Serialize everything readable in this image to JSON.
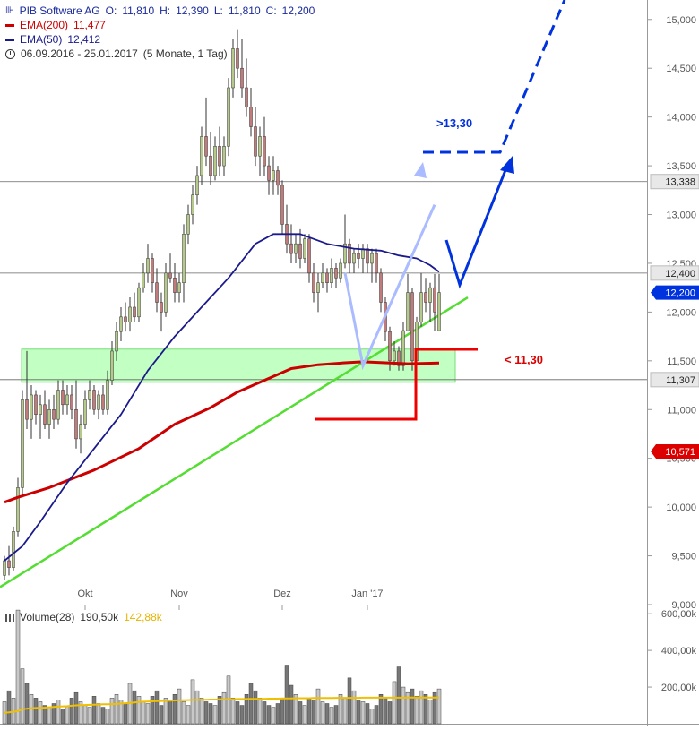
{
  "header": {
    "instrument": "PIB Software AG",
    "open_label": "O:",
    "open": "11,810",
    "high_label": "H:",
    "high": "12,390",
    "low_label": "L:",
    "low": "11,810",
    "close_label": "C:",
    "close": "12,200",
    "ema200_label": "EMA(200)",
    "ema200_value": "11,477",
    "ema50_label": "EMA(50)",
    "ema50_value": "12,412",
    "period": "06.09.2016 - 25.01.2017",
    "period_detail": "(5 Monate, 1 Tag)"
  },
  "volume_legend": {
    "label": "Volume(28)",
    "value": "190,50k",
    "average": "142,88k"
  },
  "colors": {
    "up": "#b5c98a",
    "down": "#c27b7b",
    "ema200": "#cc0000",
    "ema50": "#1a1a8c",
    "trend": "#55dd33",
    "zone": "#99ff99",
    "arrow": "#0033dd",
    "arrow_light": "#aabbff"
  },
  "chart_data": {
    "type": "candlestick",
    "y_ticks": [
      "15,000",
      "14,500",
      "14,000",
      "13,500",
      "13,000",
      "12,500",
      "12,000",
      "11,500",
      "11,000",
      "10,500",
      "10,000",
      "9,500",
      "9,000"
    ],
    "y_tick_values": [
      15.0,
      14.5,
      14.0,
      13.5,
      13.0,
      12.5,
      12.0,
      11.5,
      11.0,
      10.5,
      10.0,
      9.5,
      9.0
    ],
    "ylim": [
      9.0,
      15.2
    ],
    "x_ticks": [
      "Okt",
      "Nov",
      "Dez",
      "Jan '17"
    ],
    "x_tick_positions": [
      18,
      39,
      62,
      81
    ],
    "num_bars": 98,
    "horizontal_lines": [
      {
        "value": 13.338,
        "label": "13,338"
      },
      {
        "value": 12.4,
        "label": "12,400"
      },
      {
        "value": 11.307,
        "label": "11,307"
      }
    ],
    "price_badges": [
      {
        "value": 12.2,
        "label": "12,200",
        "color": "#0033dd"
      },
      {
        "value": 10.571,
        "label": "10,571",
        "color": "#dd0000"
      }
    ],
    "annotations": [
      {
        "text": ">13,30",
        "color": "#0033dd"
      },
      {
        "text": "< 11,30",
        "color": "#dd0000"
      }
    ],
    "support_zone": [
      11.28,
      11.62
    ],
    "candles": [
      [
        9.3,
        9.5,
        9.25,
        9.45
      ],
      [
        9.45,
        9.6,
        9.3,
        9.38
      ],
      [
        9.38,
        9.8,
        9.35,
        9.75
      ],
      [
        9.75,
        10.3,
        9.7,
        10.2
      ],
      [
        10.2,
        11.2,
        10.1,
        11.1
      ],
      [
        11.1,
        11.6,
        10.8,
        10.9
      ],
      [
        10.9,
        11.25,
        10.7,
        11.15
      ],
      [
        11.15,
        11.2,
        10.85,
        10.95
      ],
      [
        10.95,
        11.15,
        10.7,
        11.05
      ],
      [
        11.05,
        11.2,
        10.8,
        10.85
      ],
      [
        10.85,
        11.1,
        10.7,
        11.0
      ],
      [
        11.0,
        11.15,
        10.8,
        10.9
      ],
      [
        10.9,
        11.3,
        10.85,
        11.2
      ],
      [
        11.2,
        11.3,
        10.95,
        11.05
      ],
      [
        11.05,
        11.25,
        10.95,
        11.15
      ],
      [
        11.15,
        11.25,
        10.9,
        11.0
      ],
      [
        11.0,
        11.3,
        10.6,
        10.7
      ],
      [
        10.7,
        10.95,
        10.55,
        10.85
      ],
      [
        10.85,
        11.2,
        10.8,
        11.1
      ],
      [
        11.1,
        11.3,
        11.0,
        11.2
      ],
      [
        11.2,
        11.25,
        10.95,
        11.0
      ],
      [
        11.0,
        11.2,
        10.9,
        11.15
      ],
      [
        11.15,
        11.25,
        10.95,
        11.0
      ],
      [
        11.0,
        11.4,
        10.95,
        11.3
      ],
      [
        11.3,
        11.7,
        11.25,
        11.6
      ],
      [
        11.6,
        11.9,
        11.5,
        11.8
      ],
      [
        11.8,
        12.05,
        11.7,
        11.95
      ],
      [
        11.95,
        12.1,
        11.8,
        11.9
      ],
      [
        11.9,
        12.15,
        11.8,
        12.05
      ],
      [
        12.05,
        12.2,
        11.9,
        11.95
      ],
      [
        11.95,
        12.3,
        11.9,
        12.25
      ],
      [
        12.25,
        12.5,
        12.2,
        12.4
      ],
      [
        12.4,
        12.7,
        12.3,
        12.55
      ],
      [
        12.55,
        12.6,
        12.2,
        12.3
      ],
      [
        12.3,
        12.45,
        12.0,
        12.1
      ],
      [
        12.1,
        12.2,
        11.8,
        12.0
      ],
      [
        12.0,
        12.5,
        11.95,
        12.4
      ],
      [
        12.4,
        12.6,
        12.3,
        12.35
      ],
      [
        12.35,
        12.5,
        12.1,
        12.2
      ],
      [
        12.2,
        12.4,
        12.1,
        12.3
      ],
      [
        12.3,
        12.9,
        12.1,
        12.8
      ],
      [
        12.8,
        13.1,
        12.7,
        13.0
      ],
      [
        13.0,
        13.3,
        12.9,
        13.2
      ],
      [
        13.2,
        13.5,
        13.1,
        13.4
      ],
      [
        13.4,
        13.9,
        13.3,
        13.8
      ],
      [
        13.8,
        14.2,
        13.5,
        13.6
      ],
      [
        13.6,
        13.85,
        13.3,
        13.4
      ],
      [
        13.4,
        13.8,
        13.35,
        13.7
      ],
      [
        13.7,
        13.9,
        13.4,
        13.5
      ],
      [
        13.5,
        13.8,
        13.4,
        13.7
      ],
      [
        13.7,
        14.4,
        13.6,
        14.3
      ],
      [
        14.3,
        14.8,
        14.2,
        14.7
      ],
      [
        14.7,
        14.9,
        14.4,
        14.5
      ],
      [
        14.5,
        14.8,
        14.2,
        14.3
      ],
      [
        14.3,
        14.6,
        14.0,
        14.1
      ],
      [
        14.1,
        14.3,
        13.8,
        13.9
      ],
      [
        13.9,
        14.1,
        13.5,
        13.6
      ],
      [
        13.6,
        13.9,
        13.4,
        13.8
      ],
      [
        13.8,
        14.0,
        13.4,
        13.5
      ],
      [
        13.5,
        13.6,
        13.2,
        13.35
      ],
      [
        13.35,
        13.6,
        13.2,
        13.45
      ],
      [
        13.45,
        13.5,
        13.2,
        13.3
      ],
      [
        13.3,
        13.35,
        12.8,
        12.9
      ],
      [
        12.9,
        13.1,
        12.6,
        12.7
      ],
      [
        12.7,
        12.9,
        12.5,
        12.6
      ],
      [
        12.6,
        12.8,
        12.5,
        12.7
      ],
      [
        12.7,
        12.85,
        12.45,
        12.55
      ],
      [
        12.55,
        12.8,
        12.5,
        12.75
      ],
      [
        12.75,
        12.8,
        12.3,
        12.4
      ],
      [
        12.4,
        12.5,
        12.1,
        12.2
      ],
      [
        12.2,
        12.4,
        12.0,
        12.3
      ],
      [
        12.3,
        12.5,
        12.25,
        12.4
      ],
      [
        12.4,
        12.45,
        12.2,
        12.3
      ],
      [
        12.3,
        12.55,
        12.25,
        12.45
      ],
      [
        12.45,
        12.5,
        12.25,
        12.35
      ],
      [
        12.35,
        12.55,
        12.3,
        12.5
      ],
      [
        12.5,
        13.0,
        12.45,
        12.7
      ],
      [
        12.7,
        12.75,
        12.4,
        12.5
      ],
      [
        12.5,
        12.65,
        12.4,
        12.6
      ],
      [
        12.6,
        12.7,
        12.45,
        12.55
      ],
      [
        12.55,
        12.7,
        12.4,
        12.65
      ],
      [
        12.65,
        12.7,
        12.4,
        12.5
      ],
      [
        12.5,
        12.65,
        12.3,
        12.6
      ],
      [
        12.6,
        12.65,
        12.3,
        12.4
      ],
      [
        12.4,
        12.45,
        12.0,
        12.1
      ],
      [
        12.1,
        12.15,
        11.7,
        11.8
      ],
      [
        11.8,
        11.85,
        11.4,
        11.5
      ],
      [
        11.5,
        11.7,
        11.45,
        11.6
      ],
      [
        11.6,
        11.65,
        11.4,
        11.45
      ],
      [
        11.45,
        11.9,
        11.4,
        11.81
      ],
      [
        11.81,
        12.39,
        11.81,
        12.2
      ],
      [
        12.2,
        12.25,
        11.4,
        11.5
      ],
      [
        11.5,
        11.95,
        11.45,
        11.9
      ],
      [
        11.9,
        12.4,
        11.85,
        12.2
      ],
      [
        12.2,
        12.35,
        12.0,
        12.1
      ],
      [
        12.1,
        12.3,
        11.9,
        12.25
      ],
      [
        12.25,
        12.39,
        11.81,
        12.0
      ],
      [
        11.81,
        12.39,
        11.81,
        12.2
      ]
    ],
    "ema200": [
      [
        0,
        10.05
      ],
      [
        3,
        10.1
      ],
      [
        10,
        10.2
      ],
      [
        20,
        10.38
      ],
      [
        30,
        10.6
      ],
      [
        38,
        10.85
      ],
      [
        46,
        11.02
      ],
      [
        52,
        11.18
      ],
      [
        58,
        11.3
      ],
      [
        64,
        11.42
      ],
      [
        70,
        11.46
      ],
      [
        76,
        11.48
      ],
      [
        80,
        11.49
      ],
      [
        85,
        11.48
      ],
      [
        90,
        11.47
      ],
      [
        97,
        11.477
      ]
    ],
    "ema50": [
      [
        0,
        9.45
      ],
      [
        4,
        9.6
      ],
      [
        8,
        9.85
      ],
      [
        14,
        10.25
      ],
      [
        20,
        10.6
      ],
      [
        26,
        10.95
      ],
      [
        32,
        11.4
      ],
      [
        38,
        11.75
      ],
      [
        44,
        12.05
      ],
      [
        50,
        12.35
      ],
      [
        56,
        12.7
      ],
      [
        60,
        12.8
      ],
      [
        66,
        12.8
      ],
      [
        72,
        12.7
      ],
      [
        78,
        12.65
      ],
      [
        84,
        12.63
      ],
      [
        88,
        12.58
      ],
      [
        92,
        12.55
      ],
      [
        95,
        12.48
      ],
      [
        97,
        12.412
      ]
    ],
    "volume": {
      "y_ticks": [
        "600,00k",
        "400,00k",
        "200,00k"
      ],
      "y_tick_values": [
        600,
        400,
        200
      ],
      "ylim": [
        0,
        640
      ],
      "bars": [
        120,
        180,
        140,
        620,
        300,
        220,
        160,
        140,
        120,
        100,
        90,
        110,
        130,
        80,
        95,
        140,
        170,
        120,
        100,
        90,
        150,
        110,
        90,
        80,
        140,
        160,
        130,
        110,
        220,
        180,
        150,
        120,
        110,
        150,
        180,
        100,
        140,
        130,
        160,
        190,
        120,
        100,
        240,
        180,
        140,
        120,
        110,
        100,
        150,
        170,
        260,
        140,
        120,
        100,
        160,
        220,
        180,
        140,
        120,
        100,
        90,
        110,
        140,
        320,
        210,
        160,
        120,
        100,
        140,
        130,
        190,
        120,
        110,
        90,
        100,
        160,
        140,
        250,
        180,
        130,
        120,
        110,
        80,
        100,
        160,
        140,
        120,
        230,
        310,
        200,
        170,
        190,
        150,
        180,
        160,
        130,
        170,
        190
      ],
      "avg": [
        60,
        62,
        65,
        70,
        78,
        82,
        85,
        86,
        87,
        88,
        90,
        92,
        94,
        95,
        96,
        98,
        100,
        101,
        102,
        103,
        104,
        105,
        106,
        106,
        107,
        108,
        110,
        112,
        114,
        116,
        118,
        120,
        121,
        122,
        123,
        124,
        125,
        126,
        127,
        128,
        128,
        129,
        130,
        130,
        131,
        131,
        132,
        132,
        133,
        133,
        134,
        134,
        135,
        135,
        135,
        136,
        136,
        136,
        136,
        137,
        137,
        137,
        138,
        138,
        138,
        139,
        139,
        139,
        139,
        140,
        140,
        140,
        140,
        140,
        141,
        141,
        141,
        141,
        141,
        141,
        142,
        142,
        142,
        142,
        142,
        142,
        142,
        142,
        142,
        142,
        143,
        143,
        143,
        143,
        143,
        143,
        143,
        143
      ]
    }
  }
}
